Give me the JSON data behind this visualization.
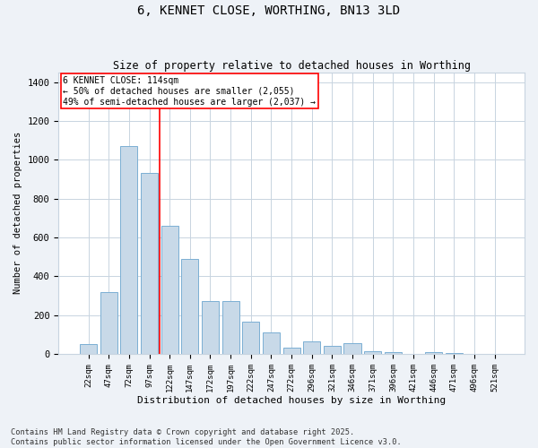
{
  "title": "6, KENNET CLOSE, WORTHING, BN13 3LD",
  "subtitle": "Size of property relative to detached houses in Worthing",
  "xlabel": "Distribution of detached houses by size in Worthing",
  "ylabel": "Number of detached properties",
  "categories": [
    "22sqm",
    "47sqm",
    "72sqm",
    "97sqm",
    "122sqm",
    "147sqm",
    "172sqm",
    "197sqm",
    "222sqm",
    "247sqm",
    "272sqm",
    "296sqm",
    "321sqm",
    "346sqm",
    "371sqm",
    "396sqm",
    "421sqm",
    "446sqm",
    "471sqm",
    "496sqm",
    "521sqm"
  ],
  "values": [
    50,
    320,
    1070,
    930,
    660,
    490,
    270,
    270,
    165,
    110,
    30,
    65,
    40,
    55,
    15,
    10,
    0,
    10,
    5,
    0,
    0
  ],
  "bar_color": "#c8d9e8",
  "bar_edge_color": "#7bafd4",
  "vline_color": "red",
  "annotation_text": "6 KENNET CLOSE: 114sqm\n← 50% of detached houses are smaller (2,055)\n49% of semi-detached houses are larger (2,037) →",
  "annotation_box_color": "white",
  "annotation_box_edge_color": "red",
  "ylim": [
    0,
    1450
  ],
  "yticks": [
    0,
    200,
    400,
    600,
    800,
    1000,
    1200,
    1400
  ],
  "footer_text": "Contains HM Land Registry data © Crown copyright and database right 2025.\nContains public sector information licensed under the Open Government Licence v3.0.",
  "background_color": "#eef2f7",
  "plot_background_color": "white",
  "grid_color": "#c8d4e0"
}
